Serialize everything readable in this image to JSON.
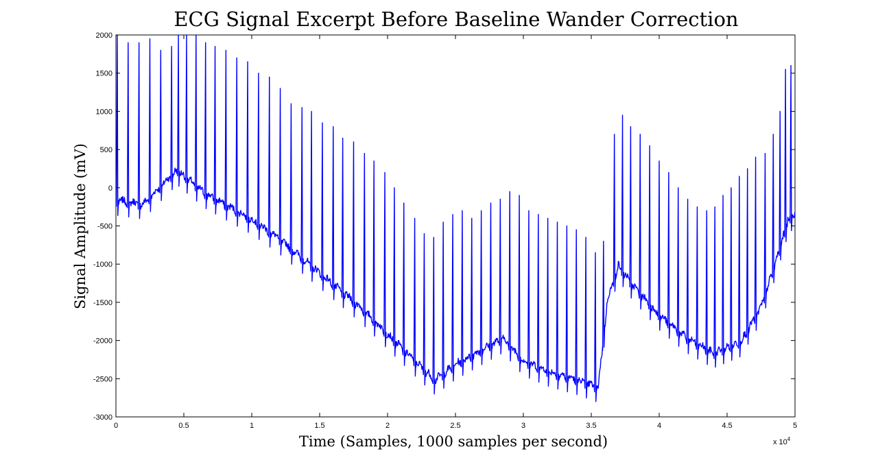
{
  "chart_data": {
    "type": "line",
    "title": "ECG Signal Excerpt Before Baseline Wander Correction",
    "xlabel": "Time (Samples, 1000 samples per second)",
    "ylabel": "Signal Amplitude (mV)",
    "xlim": [
      0,
      50000
    ],
    "ylim": [
      -3000,
      2000
    ],
    "x_multiplier_base": "x 10",
    "x_multiplier_exp": "4",
    "x_tick_labels": [
      "0",
      "0.5",
      "1",
      "1.5",
      "2",
      "2.5",
      "3",
      "3.5",
      "4",
      "4.5",
      "5"
    ],
    "y_ticks": [
      -3000,
      -2500,
      -2000,
      -1500,
      -1000,
      -500,
      0,
      500,
      1000,
      1500,
      2000
    ],
    "y_tick_labels": [
      "-3000",
      "-2500",
      "-2000",
      "-1500",
      "-1000",
      "-500",
      "0",
      "500",
      "1000",
      "1500",
      "2000"
    ],
    "grid": false,
    "line_color": "#0000ff",
    "baseline": {
      "x": [
        0,
        2000,
        4500,
        6500,
        8000,
        10000,
        12000,
        14000,
        16000,
        18000,
        20000,
        22000,
        23500,
        25000,
        27000,
        28500,
        30000,
        32000,
        34000,
        35500,
        36200,
        37000,
        38000,
        40000,
        42000,
        44000,
        46000,
        47500,
        48500,
        49500,
        50000
      ],
      "y": [
        -200,
        -250,
        200,
        -100,
        -250,
        -450,
        -700,
        -1000,
        -1300,
        -1600,
        -1950,
        -2300,
        -2550,
        -2350,
        -2150,
        -2000,
        -2300,
        -2450,
        -2550,
        -2650,
        -1500,
        -1050,
        -1300,
        -1700,
        -2000,
        -2200,
        -2050,
        -1600,
        -1050,
        -450,
        -350
      ]
    },
    "r_peaks": [
      [
        100,
        2000
      ],
      [
        900,
        1900
      ],
      [
        1700,
        1900
      ],
      [
        2500,
        1950
      ],
      [
        3300,
        1800
      ],
      [
        4100,
        1850
      ],
      [
        4600,
        2000
      ],
      [
        5200,
        2000
      ],
      [
        5900,
        2000
      ],
      [
        6600,
        1900
      ],
      [
        7300,
        1850
      ],
      [
        8100,
        1800
      ],
      [
        8900,
        1700
      ],
      [
        9700,
        1650
      ],
      [
        10500,
        1500
      ],
      [
        11300,
        1450
      ],
      [
        12100,
        1300
      ],
      [
        12900,
        1100
      ],
      [
        13700,
        1050
      ],
      [
        14400,
        1000
      ],
      [
        15200,
        850
      ],
      [
        16000,
        800
      ],
      [
        16700,
        650
      ],
      [
        17500,
        600
      ],
      [
        18300,
        450
      ],
      [
        19000,
        350
      ],
      [
        19800,
        200
      ],
      [
        20500,
        0
      ],
      [
        21200,
        -200
      ],
      [
        22000,
        -400
      ],
      [
        22700,
        -600
      ],
      [
        23400,
        -650
      ],
      [
        24100,
        -450
      ],
      [
        24800,
        -350
      ],
      [
        25500,
        -300
      ],
      [
        26200,
        -400
      ],
      [
        26900,
        -300
      ],
      [
        27600,
        -200
      ],
      [
        28300,
        -150
      ],
      [
        29000,
        -50
      ],
      [
        29700,
        -100
      ],
      [
        30400,
        -300
      ],
      [
        31100,
        -350
      ],
      [
        31800,
        -400
      ],
      [
        32500,
        -450
      ],
      [
        33200,
        -500
      ],
      [
        33900,
        -550
      ],
      [
        34600,
        -650
      ],
      [
        35300,
        -850
      ],
      [
        35900,
        -700
      ],
      [
        36700,
        700
      ],
      [
        37300,
        950
      ],
      [
        37900,
        800
      ],
      [
        38600,
        700
      ],
      [
        39300,
        550
      ],
      [
        40000,
        350
      ],
      [
        40700,
        200
      ],
      [
        41400,
        0
      ],
      [
        42100,
        -150
      ],
      [
        42800,
        -250
      ],
      [
        43500,
        -300
      ],
      [
        44100,
        -250
      ],
      [
        44700,
        -100
      ],
      [
        45300,
        0
      ],
      [
        45900,
        150
      ],
      [
        46500,
        250
      ],
      [
        47100,
        400
      ],
      [
        47800,
        450
      ],
      [
        48400,
        700
      ],
      [
        48900,
        1000
      ],
      [
        49300,
        1550
      ],
      [
        49700,
        1600
      ]
    ]
  }
}
